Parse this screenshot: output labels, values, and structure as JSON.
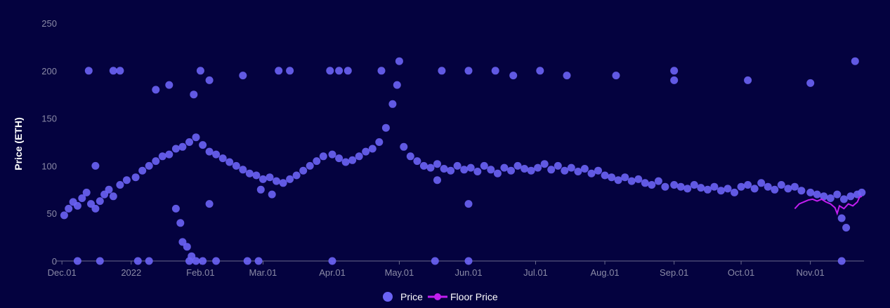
{
  "chart_data": {
    "type": "scatter",
    "ylabel": "Price (ETH)",
    "xlabel": "",
    "ylim": [
      0,
      250
    ],
    "yticks": [
      0,
      50,
      100,
      150,
      200,
      250
    ],
    "xlim": [
      "2021-11-30",
      "2022-11-25"
    ],
    "xticks": [
      {
        "date": "2021-12-01",
        "label": "Dec.01"
      },
      {
        "date": "2022-01-01",
        "label": "2022"
      },
      {
        "date": "2022-02-01",
        "label": "Feb.01"
      },
      {
        "date": "2022-03-01",
        "label": "Mar.01"
      },
      {
        "date": "2022-04-01",
        "label": "Apr.01"
      },
      {
        "date": "2022-05-01",
        "label": "May.01"
      },
      {
        "date": "2022-06-01",
        "label": "Jun.01"
      },
      {
        "date": "2022-07-01",
        "label": "Jul.01"
      },
      {
        "date": "2022-08-01",
        "label": "Aug.01"
      },
      {
        "date": "2022-09-01",
        "label": "Sep.01"
      },
      {
        "date": "2022-10-01",
        "label": "Oct.01"
      },
      {
        "date": "2022-11-01",
        "label": "Nov.01"
      }
    ],
    "legend": {
      "placement": "bottom-center"
    },
    "grid": false,
    "series": [
      {
        "name": "Price",
        "kind": "scatter",
        "color": "#6b63f5",
        "points": [
          [
            "2021-12-02",
            48
          ],
          [
            "2021-12-04",
            55
          ],
          [
            "2021-12-06",
            62
          ],
          [
            "2021-12-08",
            58
          ],
          [
            "2021-12-10",
            66
          ],
          [
            "2021-12-12",
            72
          ],
          [
            "2021-12-14",
            60
          ],
          [
            "2021-12-16",
            55
          ],
          [
            "2021-12-18",
            63
          ],
          [
            "2021-12-20",
            70
          ],
          [
            "2021-12-22",
            75
          ],
          [
            "2021-12-24",
            68
          ],
          [
            "2021-12-27",
            80
          ],
          [
            "2021-12-30",
            85
          ],
          [
            "2022-01-03",
            88
          ],
          [
            "2022-01-06",
            95
          ],
          [
            "2022-01-09",
            100
          ],
          [
            "2022-01-12",
            105
          ],
          [
            "2022-01-15",
            110
          ],
          [
            "2022-01-18",
            112
          ],
          [
            "2022-01-21",
            118
          ],
          [
            "2022-01-24",
            120
          ],
          [
            "2022-01-27",
            125
          ],
          [
            "2022-01-30",
            130
          ],
          [
            "2022-02-02",
            122
          ],
          [
            "2022-02-05",
            115
          ],
          [
            "2022-02-08",
            112
          ],
          [
            "2022-02-11",
            108
          ],
          [
            "2022-02-14",
            104
          ],
          [
            "2022-02-17",
            100
          ],
          [
            "2022-02-20",
            96
          ],
          [
            "2022-02-23",
            92
          ],
          [
            "2022-02-26",
            90
          ],
          [
            "2022-03-01",
            86
          ],
          [
            "2022-03-04",
            88
          ],
          [
            "2022-03-07",
            84
          ],
          [
            "2022-03-10",
            82
          ],
          [
            "2022-03-13",
            86
          ],
          [
            "2022-03-16",
            90
          ],
          [
            "2022-03-19",
            95
          ],
          [
            "2022-03-22",
            100
          ],
          [
            "2022-03-25",
            105
          ],
          [
            "2022-03-28",
            110
          ],
          [
            "2022-04-01",
            112
          ],
          [
            "2022-04-04",
            108
          ],
          [
            "2022-04-07",
            104
          ],
          [
            "2022-04-10",
            106
          ],
          [
            "2022-04-13",
            110
          ],
          [
            "2022-04-16",
            115
          ],
          [
            "2022-04-19",
            118
          ],
          [
            "2022-04-22",
            125
          ],
          [
            "2022-04-25",
            140
          ],
          [
            "2022-04-28",
            165
          ],
          [
            "2022-04-30",
            185
          ],
          [
            "2022-05-03",
            120
          ],
          [
            "2022-05-06",
            110
          ],
          [
            "2022-05-09",
            105
          ],
          [
            "2022-05-12",
            100
          ],
          [
            "2022-05-15",
            98
          ],
          [
            "2022-05-18",
            102
          ],
          [
            "2022-05-21",
            97
          ],
          [
            "2022-05-24",
            95
          ],
          [
            "2022-05-27",
            100
          ],
          [
            "2022-05-30",
            96
          ],
          [
            "2022-06-02",
            98
          ],
          [
            "2022-06-05",
            94
          ],
          [
            "2022-06-08",
            100
          ],
          [
            "2022-06-11",
            96
          ],
          [
            "2022-06-14",
            92
          ],
          [
            "2022-06-17",
            98
          ],
          [
            "2022-06-20",
            95
          ],
          [
            "2022-06-23",
            100
          ],
          [
            "2022-06-26",
            97
          ],
          [
            "2022-06-29",
            95
          ],
          [
            "2022-07-02",
            98
          ],
          [
            "2022-07-05",
            102
          ],
          [
            "2022-07-08",
            96
          ],
          [
            "2022-07-11",
            100
          ],
          [
            "2022-07-14",
            95
          ],
          [
            "2022-07-17",
            98
          ],
          [
            "2022-07-20",
            94
          ],
          [
            "2022-07-23",
            97
          ],
          [
            "2022-07-26",
            92
          ],
          [
            "2022-07-29",
            95
          ],
          [
            "2022-08-01",
            90
          ],
          [
            "2022-08-04",
            88
          ],
          [
            "2022-08-07",
            85
          ],
          [
            "2022-08-10",
            88
          ],
          [
            "2022-08-13",
            84
          ],
          [
            "2022-08-16",
            86
          ],
          [
            "2022-08-19",
            82
          ],
          [
            "2022-08-22",
            80
          ],
          [
            "2022-08-25",
            84
          ],
          [
            "2022-08-28",
            78
          ],
          [
            "2022-09-01",
            80
          ],
          [
            "2022-09-04",
            78
          ],
          [
            "2022-09-07",
            76
          ],
          [
            "2022-09-10",
            80
          ],
          [
            "2022-09-13",
            77
          ],
          [
            "2022-09-16",
            75
          ],
          [
            "2022-09-19",
            78
          ],
          [
            "2022-09-22",
            74
          ],
          [
            "2022-09-25",
            76
          ],
          [
            "2022-09-28",
            72
          ],
          [
            "2022-10-01",
            78
          ],
          [
            "2022-10-04",
            80
          ],
          [
            "2022-10-07",
            76
          ],
          [
            "2022-10-10",
            82
          ],
          [
            "2022-10-13",
            78
          ],
          [
            "2022-10-16",
            75
          ],
          [
            "2022-10-19",
            80
          ],
          [
            "2022-10-22",
            76
          ],
          [
            "2022-10-25",
            78
          ],
          [
            "2022-10-28",
            74
          ],
          [
            "2022-11-01",
            72
          ],
          [
            "2022-11-04",
            70
          ],
          [
            "2022-11-07",
            68
          ],
          [
            "2022-11-10",
            66
          ],
          [
            "2022-11-13",
            70
          ],
          [
            "2022-11-16",
            65
          ],
          [
            "2022-11-19",
            68
          ],
          [
            "2022-11-22",
            70
          ],
          [
            "2022-11-24",
            72
          ],
          [
            "2021-12-16",
            100
          ],
          [
            "2021-12-13",
            200
          ],
          [
            "2021-12-24",
            200
          ],
          [
            "2021-12-27",
            200
          ],
          [
            "2022-01-12",
            180
          ],
          [
            "2022-01-18",
            185
          ],
          [
            "2022-01-29",
            175
          ],
          [
            "2022-02-01",
            200
          ],
          [
            "2022-02-05",
            190
          ],
          [
            "2022-02-20",
            195
          ],
          [
            "2022-03-08",
            200
          ],
          [
            "2022-03-13",
            200
          ],
          [
            "2022-03-31",
            200
          ],
          [
            "2022-04-04",
            200
          ],
          [
            "2022-04-08",
            200
          ],
          [
            "2022-04-23",
            200
          ],
          [
            "2022-05-01",
            210
          ],
          [
            "2022-05-20",
            200
          ],
          [
            "2022-06-01",
            200
          ],
          [
            "2022-06-13",
            200
          ],
          [
            "2022-06-21",
            195
          ],
          [
            "2022-07-03",
            200
          ],
          [
            "2022-07-15",
            195
          ],
          [
            "2022-08-06",
            195
          ],
          [
            "2022-09-01",
            200
          ],
          [
            "2022-09-01",
            190
          ],
          [
            "2022-10-04",
            190
          ],
          [
            "2022-11-01",
            187
          ],
          [
            "2022-11-21",
            210
          ],
          [
            "2022-01-21",
            55
          ],
          [
            "2022-01-23",
            40
          ],
          [
            "2022-01-24",
            20
          ],
          [
            "2022-01-26",
            15
          ],
          [
            "2022-01-28",
            5
          ],
          [
            "2022-01-30",
            0
          ],
          [
            "2022-02-05",
            60
          ],
          [
            "2022-02-28",
            75
          ],
          [
            "2022-03-05",
            70
          ],
          [
            "2022-05-18",
            85
          ],
          [
            "2022-06-01",
            60
          ],
          [
            "2022-11-15",
            45
          ],
          [
            "2022-11-17",
            35
          ],
          [
            "2021-12-08",
            0
          ],
          [
            "2021-12-18",
            0
          ],
          [
            "2022-01-04",
            0
          ],
          [
            "2022-01-09",
            0
          ],
          [
            "2022-01-27",
            0
          ],
          [
            "2022-02-02",
            0
          ],
          [
            "2022-02-08",
            0
          ],
          [
            "2022-02-22",
            0
          ],
          [
            "2022-02-27",
            0
          ],
          [
            "2022-04-01",
            0
          ],
          [
            "2022-05-17",
            0
          ],
          [
            "2022-06-01",
            0
          ],
          [
            "2022-11-15",
            0
          ]
        ]
      },
      {
        "name": "Floor Price",
        "kind": "line",
        "color": "#c21ef0",
        "points": [
          [
            "2022-10-25",
            55
          ],
          [
            "2022-10-27",
            60
          ],
          [
            "2022-10-29",
            62
          ],
          [
            "2022-10-31",
            64
          ],
          [
            "2022-11-02",
            65
          ],
          [
            "2022-11-04",
            63
          ],
          [
            "2022-11-06",
            65
          ],
          [
            "2022-11-08",
            62
          ],
          [
            "2022-11-10",
            60
          ],
          [
            "2022-11-12",
            56
          ],
          [
            "2022-11-13",
            50
          ],
          [
            "2022-11-14",
            58
          ],
          [
            "2022-11-16",
            55
          ],
          [
            "2022-11-18",
            60
          ],
          [
            "2022-11-20",
            58
          ],
          [
            "2022-11-22",
            62
          ],
          [
            "2022-11-23",
            67
          ],
          [
            "2022-11-24",
            68
          ]
        ]
      }
    ]
  }
}
